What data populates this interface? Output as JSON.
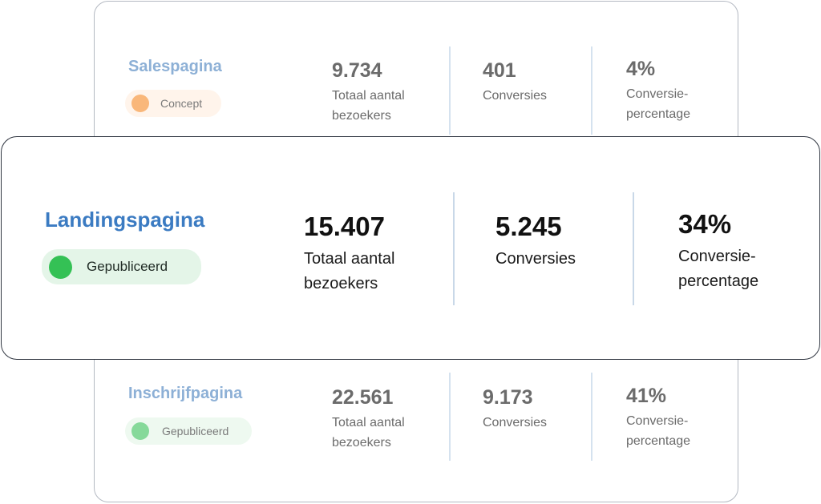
{
  "rows": {
    "sales": {
      "name": "Salespagina",
      "status": {
        "label": "Concept",
        "dot_color": "#f9b77a",
        "pill_color": "#fff4eb"
      },
      "visitors": {
        "value": "9.734",
        "label_line1": "Totaal aantal",
        "label_line2": "bezoekers"
      },
      "conversions": {
        "value": "401",
        "label_line1": "Conversies"
      },
      "rate": {
        "value": "4%",
        "label_line1": "Conversie-",
        "label_line2": "percentage"
      }
    },
    "landing": {
      "name": "Landingspagina",
      "status": {
        "label": "Gepubliceerd",
        "dot_color": "#34c155",
        "pill_color": "#e4f5e8"
      },
      "visitors": {
        "value": "15.407",
        "label_line1": "Totaal aantal",
        "label_line2": "bezoekers"
      },
      "conversions": {
        "value": "5.245",
        "label_line1": "Conversies"
      },
      "rate": {
        "value": "34%",
        "label_line1": "Conversie-",
        "label_line2": "percentage"
      }
    },
    "signup": {
      "name": "Inschrijfpagina",
      "status": {
        "label": "Gepubliceerd",
        "dot_color": "#86d99a",
        "pill_color": "#eef9f0"
      },
      "visitors": {
        "value": "22.561",
        "label_line1": "Totaal aantal",
        "label_line2": "bezoekers"
      },
      "conversions": {
        "value": "9.173",
        "label_line1": "Conversies"
      },
      "rate": {
        "value": "41%",
        "label_line1": "Conversie-",
        "label_line2": "percentage"
      }
    }
  }
}
